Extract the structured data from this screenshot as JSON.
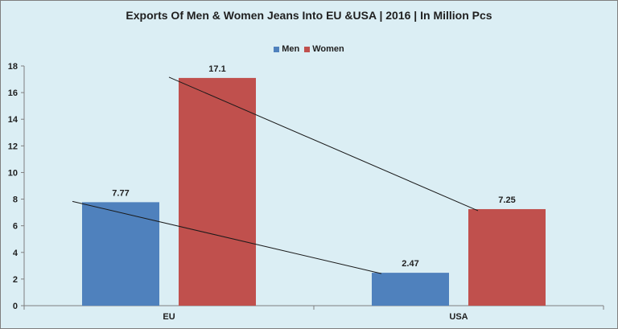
{
  "chart_data": {
    "type": "bar",
    "title": "Exports Of Men & Women Jeans Into EU &USA  |  2016 | In Million Pcs",
    "categories": [
      "EU",
      "USA"
    ],
    "series": [
      {
        "name": "Men",
        "values": [
          7.77,
          2.47
        ],
        "color": "#4f81bd"
      },
      {
        "name": "Women",
        "values": [
          17.1,
          7.25
        ],
        "color": "#c0504d"
      }
    ],
    "data_labels": [
      [
        "7.77",
        "2.47"
      ],
      [
        "17.1",
        "7.25"
      ]
    ],
    "ylim": [
      0,
      18
    ],
    "yticks": [
      0,
      2,
      4,
      6,
      8,
      10,
      12,
      14,
      16,
      18
    ],
    "xlabel": "",
    "ylabel": "",
    "grid": false,
    "legend_position": "top",
    "trend_lines": true,
    "background_color": "#dbeef4"
  }
}
